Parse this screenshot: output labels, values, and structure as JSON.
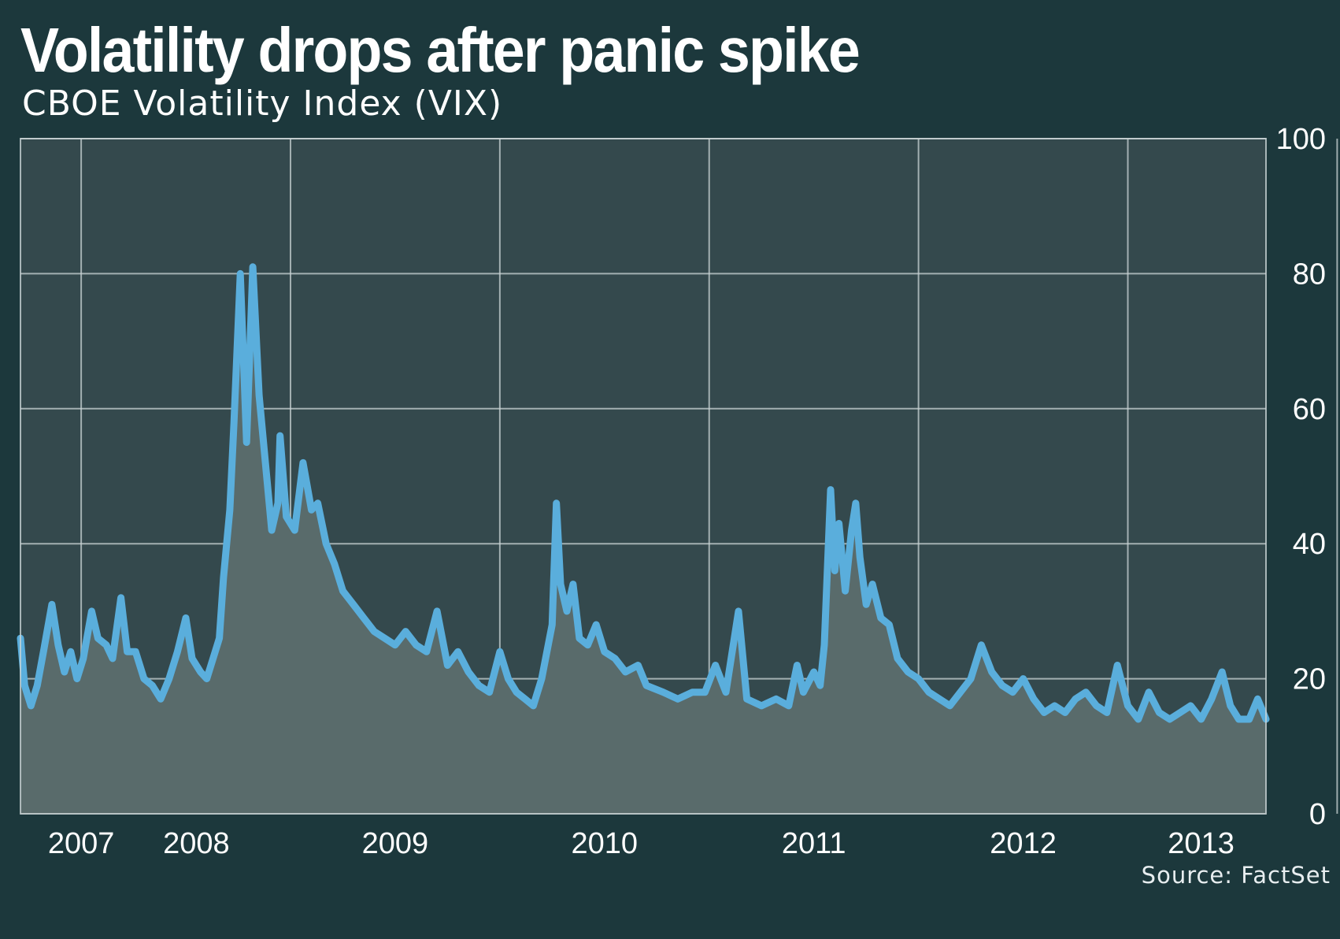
{
  "header": {
    "title": "Volatility drops after panic spike",
    "subtitle": "CBOE Volatility Index (VIX)"
  },
  "footer": {
    "source": "Source: FactSet"
  },
  "colors": {
    "background": "#1c383c",
    "plot_background": "#34494d",
    "area_fill": "#596b6b",
    "line": "#5aaedc",
    "grid": "#c9d3d4",
    "text": "#ffffff"
  },
  "chart_data": {
    "type": "area",
    "title": "Volatility drops after panic spike",
    "subtitle": "CBOE Volatility Index (VIX)",
    "xlabel": "",
    "ylabel": "",
    "x_tick_labels": [
      "2007",
      "2008",
      "2009",
      "2010",
      "2011",
      "2012",
      "2013"
    ],
    "x_tick_positions": [
      2007.0,
      2008.0,
      2009.0,
      2010.0,
      2011.0,
      2012.0,
      2013.0
    ],
    "x_label_positions": [
      2007.0,
      2007.55,
      2008.5,
      2009.5,
      2010.5,
      2011.5,
      2012.35
    ],
    "x_range": [
      2006.71,
      2012.66
    ],
    "ylim": [
      0,
      100
    ],
    "y_ticks": [
      0,
      20,
      40,
      60,
      80,
      100
    ],
    "y_axis_side": "right",
    "grid": true,
    "series": [
      {
        "name": "VIX",
        "points": [
          [
            2006.71,
            26
          ],
          [
            2006.73,
            19
          ],
          [
            2006.76,
            16
          ],
          [
            2006.79,
            19
          ],
          [
            2006.82,
            24
          ],
          [
            2006.86,
            31
          ],
          [
            2006.89,
            25
          ],
          [
            2006.92,
            21
          ],
          [
            2006.95,
            24
          ],
          [
            2006.98,
            20
          ],
          [
            2007.01,
            23
          ],
          [
            2007.05,
            30
          ],
          [
            2007.08,
            26
          ],
          [
            2007.12,
            25
          ],
          [
            2007.15,
            23
          ],
          [
            2007.19,
            32
          ],
          [
            2007.22,
            24
          ],
          [
            2007.26,
            24
          ],
          [
            2007.3,
            20
          ],
          [
            2007.34,
            19
          ],
          [
            2007.38,
            17
          ],
          [
            2007.42,
            20
          ],
          [
            2007.46,
            24
          ],
          [
            2007.5,
            29
          ],
          [
            2007.53,
            23
          ],
          [
            2007.57,
            21
          ],
          [
            2007.6,
            20
          ],
          [
            2007.64,
            24
          ],
          [
            2007.66,
            26
          ],
          [
            2007.68,
            35
          ],
          [
            2007.71,
            45
          ],
          [
            2007.73,
            58
          ],
          [
            2007.76,
            80
          ],
          [
            2007.79,
            55
          ],
          [
            2007.82,
            81
          ],
          [
            2007.85,
            62
          ],
          [
            2007.88,
            52
          ],
          [
            2007.91,
            42
          ],
          [
            2007.94,
            46
          ],
          [
            2007.95,
            56
          ],
          [
            2007.98,
            44
          ],
          [
            2008.02,
            42
          ],
          [
            2008.06,
            52
          ],
          [
            2008.1,
            45
          ],
          [
            2008.13,
            46
          ],
          [
            2008.17,
            40
          ],
          [
            2008.21,
            37
          ],
          [
            2008.25,
            33
          ],
          [
            2008.3,
            31
          ],
          [
            2008.35,
            29
          ],
          [
            2008.4,
            27
          ],
          [
            2008.45,
            26
          ],
          [
            2008.5,
            25
          ],
          [
            2008.55,
            27
          ],
          [
            2008.6,
            25
          ],
          [
            2008.65,
            24
          ],
          [
            2008.7,
            30
          ],
          [
            2008.75,
            22
          ],
          [
            2008.8,
            24
          ],
          [
            2008.85,
            21
          ],
          [
            2008.9,
            19
          ],
          [
            2008.95,
            18
          ],
          [
            2009.0,
            24
          ],
          [
            2009.04,
            20
          ],
          [
            2009.08,
            18
          ],
          [
            2009.12,
            17
          ],
          [
            2009.16,
            16
          ],
          [
            2009.2,
            20
          ],
          [
            2009.25,
            28
          ],
          [
            2009.27,
            46
          ],
          [
            2009.29,
            34
          ],
          [
            2009.32,
            30
          ],
          [
            2009.35,
            34
          ],
          [
            2009.38,
            26
          ],
          [
            2009.42,
            25
          ],
          [
            2009.46,
            28
          ],
          [
            2009.5,
            24
          ],
          [
            2009.55,
            23
          ],
          [
            2009.6,
            21
          ],
          [
            2009.66,
            22
          ],
          [
            2009.7,
            19
          ],
          [
            2009.78,
            18
          ],
          [
            2009.85,
            17
          ],
          [
            2009.92,
            18
          ],
          [
            2009.98,
            18
          ],
          [
            2010.03,
            22
          ],
          [
            2010.08,
            18
          ],
          [
            2010.14,
            30
          ],
          [
            2010.18,
            17
          ],
          [
            2010.25,
            16
          ],
          [
            2010.32,
            17
          ],
          [
            2010.38,
            16
          ],
          [
            2010.42,
            22
          ],
          [
            2010.45,
            18
          ],
          [
            2010.5,
            21
          ],
          [
            2010.53,
            19
          ],
          [
            2010.55,
            25
          ],
          [
            2010.58,
            48
          ],
          [
            2010.6,
            36
          ],
          [
            2010.62,
            43
          ],
          [
            2010.65,
            33
          ],
          [
            2010.68,
            42
          ],
          [
            2010.7,
            46
          ],
          [
            2010.72,
            38
          ],
          [
            2010.75,
            31
          ],
          [
            2010.78,
            34
          ],
          [
            2010.82,
            29
          ],
          [
            2010.86,
            28
          ],
          [
            2010.9,
            23
          ],
          [
            2010.95,
            21
          ],
          [
            2011.0,
            20
          ],
          [
            2011.05,
            18
          ],
          [
            2011.1,
            17
          ],
          [
            2011.15,
            16
          ],
          [
            2011.2,
            18
          ],
          [
            2011.25,
            20
          ],
          [
            2011.3,
            25
          ],
          [
            2011.35,
            21
          ],
          [
            2011.4,
            19
          ],
          [
            2011.45,
            18
          ],
          [
            2011.5,
            20
          ],
          [
            2011.55,
            17
          ],
          [
            2011.6,
            15
          ],
          [
            2011.65,
            16
          ],
          [
            2011.7,
            15
          ],
          [
            2011.75,
            17
          ],
          [
            2011.8,
            18
          ],
          [
            2011.85,
            16
          ],
          [
            2011.9,
            15
          ],
          [
            2011.95,
            22
          ],
          [
            2012.0,
            16
          ],
          [
            2012.05,
            14
          ],
          [
            2012.1,
            18
          ],
          [
            2012.15,
            15
          ],
          [
            2012.2,
            14
          ],
          [
            2012.25,
            15
          ],
          [
            2012.3,
            16
          ],
          [
            2012.35,
            14
          ],
          [
            2012.4,
            17
          ],
          [
            2012.45,
            21
          ],
          [
            2012.49,
            16
          ],
          [
            2012.53,
            14
          ],
          [
            2012.58,
            14
          ],
          [
            2012.62,
            17
          ],
          [
            2012.66,
            14
          ]
        ]
      }
    ]
  }
}
